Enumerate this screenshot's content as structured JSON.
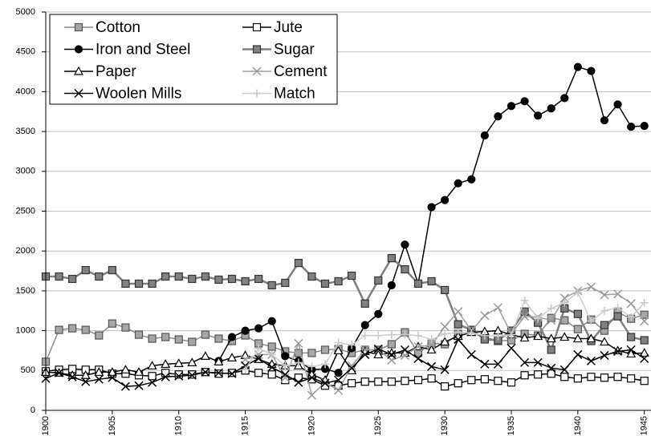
{
  "chart_data": {
    "type": "line",
    "x": [
      1900,
      1901,
      1902,
      1903,
      1904,
      1905,
      1906,
      1907,
      1908,
      1909,
      1910,
      1911,
      1912,
      1913,
      1914,
      1915,
      1916,
      1917,
      1918,
      1919,
      1920,
      1921,
      1922,
      1923,
      1924,
      1925,
      1926,
      1927,
      1928,
      1929,
      1930,
      1931,
      1932,
      1933,
      1934,
      1935,
      1936,
      1937,
      1938,
      1939,
      1940,
      1941,
      1942,
      1943,
      1944,
      1945
    ],
    "xlim": [
      1900,
      1945.5
    ],
    "xticks": [
      1900,
      1905,
      1910,
      1915,
      1920,
      1925,
      1930,
      1935,
      1940,
      1945
    ],
    "ylim": [
      0,
      5000
    ],
    "yticks": [
      0,
      500,
      1000,
      1500,
      2000,
      2500,
      3000,
      3500,
      4000,
      4500,
      5000
    ],
    "grid": true,
    "legend": "top-left",
    "series": [
      {
        "name": "Cotton",
        "color": "#8c8c8c",
        "marker": "square",
        "marker_fill": "#a6a6a6",
        "marker_stroke": "#555555",
        "values": [
          610,
          1010,
          1030,
          1010,
          940,
          1090,
          1040,
          950,
          900,
          920,
          890,
          860,
          950,
          900,
          870,
          940,
          840,
          800,
          740,
          720,
          720,
          760,
          770,
          720,
          760,
          760,
          830,
          980,
          720,
          840,
          830,
          960,
          990,
          920,
          870,
          880,
          960,
          940,
          1160,
          1130,
          1020,
          1140,
          1000,
          1230,
          1150,
          1200
        ]
      },
      {
        "name": "Jute",
        "color": "#000000",
        "marker": "square",
        "marker_fill": "#ffffff",
        "marker_stroke": "#000000",
        "values": [
          490,
          510,
          520,
          510,
          510,
          460,
          460,
          440,
          430,
          470,
          450,
          450,
          480,
          460,
          470,
          500,
          470,
          450,
          380,
          410,
          390,
          310,
          310,
          340,
          360,
          360,
          360,
          370,
          380,
          400,
          300,
          340,
          380,
          390,
          370,
          350,
          440,
          450,
          460,
          420,
          400,
          420,
          410,
          420,
          400,
          370
        ]
      },
      {
        "name": "Iron and Steel",
        "color": "#000000",
        "marker": "circle",
        "marker_fill": "#000000",
        "marker_stroke": "#000000",
        "values": [
          null,
          null,
          null,
          null,
          null,
          null,
          null,
          null,
          null,
          null,
          null,
          null,
          null,
          620,
          920,
          1000,
          1030,
          1120,
          680,
          620,
          510,
          520,
          470,
          780,
          1070,
          1210,
          1570,
          2080,
          1590,
          2550,
          2640,
          2850,
          2900,
          3450,
          3690,
          3820,
          3880,
          3700,
          3790,
          3920,
          4310,
          4260,
          3640,
          3840,
          3560,
          3570
        ]
      },
      {
        "name": "Sugar",
        "color": "#7f7f7f",
        "marker": "square",
        "marker_fill": "#808080",
        "marker_stroke": "#333333",
        "values": [
          1680,
          1680,
          1650,
          1760,
          1680,
          1760,
          1590,
          1590,
          1590,
          1680,
          1680,
          1650,
          1680,
          1640,
          1650,
          1620,
          1650,
          1570,
          1600,
          1850,
          1680,
          1590,
          1620,
          1690,
          1340,
          1630,
          1910,
          1770,
          1590,
          1620,
          1510,
          1080,
          1010,
          890,
          880,
          1000,
          1240,
          1100,
          760,
          1280,
          1210,
          870,
          1070,
          1180,
          920,
          880
        ]
      },
      {
        "name": "Paper",
        "color": "#000000",
        "marker": "triangle",
        "marker_fill": "#ffffff",
        "marker_stroke": "#000000",
        "values": [
          480,
          470,
          440,
          440,
          480,
          480,
          510,
          480,
          560,
          580,
          590,
          600,
          680,
          610,
          660,
          690,
          640,
          580,
          560,
          560,
          450,
          380,
          750,
          500,
          740,
          700,
          720,
          720,
          800,
          760,
          860,
          930,
          980,
          990,
          1000,
          950,
          910,
          930,
          900,
          920,
          900,
          900,
          860,
          750,
          710,
          720
        ]
      },
      {
        "name": "Cement",
        "color": "#a0a0a0",
        "marker": "x",
        "marker_fill": "none",
        "marker_stroke": "#999999",
        "values": [
          null,
          null,
          null,
          null,
          null,
          null,
          null,
          null,
          null,
          null,
          null,
          null,
          null,
          null,
          null,
          640,
          700,
          700,
          410,
          840,
          190,
          350,
          250,
          560,
          760,
          760,
          630,
          690,
          800,
          820,
          1050,
          1240,
          1000,
          1190,
          1290,
          960,
          1180,
          1170,
          1130,
          1410,
          1500,
          1550,
          1450,
          1460,
          1340,
          1120
        ]
      },
      {
        "name": "Woolen Mills",
        "color": "#000000",
        "marker": "x",
        "marker_fill": "none",
        "marker_stroke": "#000000",
        "values": [
          400,
          470,
          420,
          360,
          390,
          410,
          300,
          310,
          350,
          420,
          430,
          440,
          480,
          470,
          460,
          560,
          650,
          540,
          450,
          350,
          410,
          340,
          380,
          530,
          700,
          770,
          700,
          760,
          650,
          550,
          510,
          890,
          700,
          580,
          580,
          780,
          600,
          600,
          530,
          510,
          700,
          620,
          690,
          740,
          760,
          650
        ]
      },
      {
        "name": "Match",
        "color": "#cccccc",
        "marker": "plus",
        "marker_fill": "none",
        "marker_stroke": "#c8c8c8",
        "values": [
          null,
          null,
          null,
          null,
          null,
          null,
          null,
          null,
          null,
          null,
          null,
          null,
          null,
          null,
          null,
          510,
          780,
          700,
          560,
          600,
          550,
          580,
          850,
          820,
          940,
          940,
          950,
          950,
          940,
          890,
          960,
          980,
          970,
          940,
          930,
          950,
          1380,
          1150,
          1280,
          1350,
          1480,
          1120,
          1250,
          1290,
          1170,
          1350
        ]
      }
    ]
  }
}
